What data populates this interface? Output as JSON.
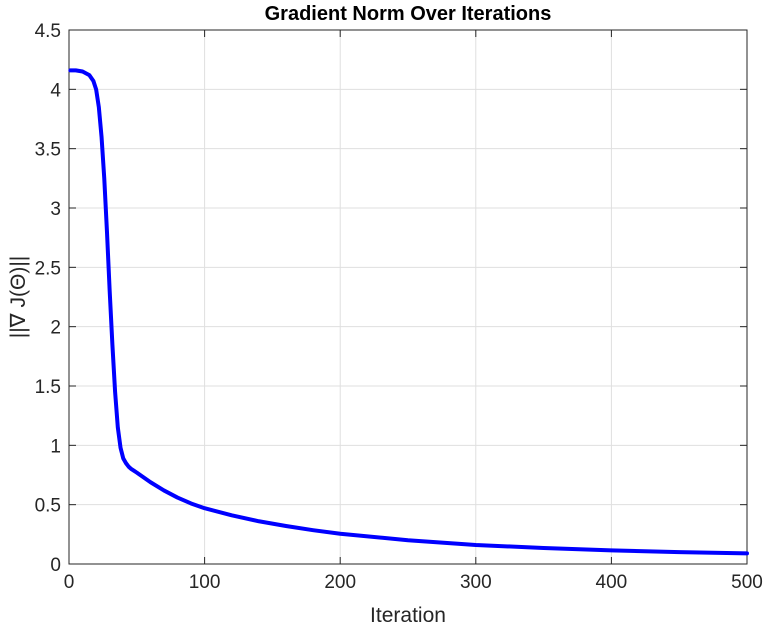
{
  "chart_data": {
    "type": "line",
    "title": "Gradient Norm Over Iterations",
    "xlabel": "Iteration",
    "ylabel": "||∇ J(Θ)||",
    "xlim": [
      0,
      500
    ],
    "ylim": [
      0,
      4.5
    ],
    "xticks": [
      0,
      100,
      200,
      300,
      400,
      500
    ],
    "yticks": [
      0,
      0.5,
      1,
      1.5,
      2,
      2.5,
      3,
      3.5,
      4,
      4.5
    ],
    "xtick_labels": [
      "0",
      "100",
      "200",
      "300",
      "400",
      "500"
    ],
    "ytick_labels": [
      "0",
      "0.5",
      "1",
      "1.5",
      "2",
      "2.5",
      "3",
      "3.5",
      "4",
      "4.5"
    ],
    "grid": true,
    "series": [
      {
        "color": "#0000ff",
        "x": [
          1,
          5,
          10,
          15,
          18,
          20,
          22,
          24,
          26,
          28,
          30,
          32,
          34,
          36,
          38,
          40,
          42,
          44,
          46,
          48,
          50,
          55,
          60,
          70,
          80,
          90,
          100,
          120,
          140,
          160,
          180,
          200,
          250,
          300,
          350,
          400,
          450,
          500
        ],
        "y": [
          4.16,
          4.16,
          4.15,
          4.12,
          4.07,
          4.0,
          3.85,
          3.6,
          3.25,
          2.8,
          2.3,
          1.85,
          1.45,
          1.15,
          0.98,
          0.89,
          0.85,
          0.82,
          0.8,
          0.785,
          0.77,
          0.73,
          0.69,
          0.62,
          0.56,
          0.51,
          0.47,
          0.41,
          0.36,
          0.32,
          0.285,
          0.255,
          0.2,
          0.16,
          0.135,
          0.115,
          0.1,
          0.09
        ]
      }
    ]
  }
}
